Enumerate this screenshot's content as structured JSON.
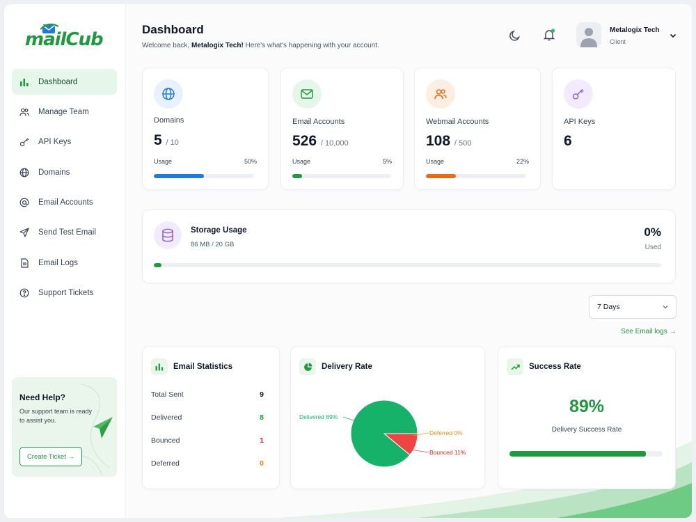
{
  "brand": {
    "logo_text": "mailCub"
  },
  "sidebar": {
    "items": [
      {
        "label": "Dashboard",
        "icon": "bar-chart-icon",
        "active": true
      },
      {
        "label": "Manage Team",
        "icon": "users-icon"
      },
      {
        "label": "API Keys",
        "icon": "key-icon"
      },
      {
        "label": "Domains",
        "icon": "globe-icon"
      },
      {
        "label": "Email Accounts",
        "icon": "at-icon"
      },
      {
        "label": "Send Test Email",
        "icon": "send-icon"
      },
      {
        "label": "Email Logs",
        "icon": "file-icon"
      },
      {
        "label": "Support Tickets",
        "icon": "help-circle-icon"
      }
    ],
    "help": {
      "title": "Need Help?",
      "text": "Our support team is ready to assist you.",
      "button": "Create Ticket →"
    }
  },
  "header": {
    "title": "Dashboard",
    "welcome_prefix": "Welcome back, ",
    "welcome_name": "Metalogix Tech!",
    "welcome_suffix": " Here's what's happening with your account.",
    "user_name": "Metalogix Tech",
    "user_role": "Client"
  },
  "stats": {
    "domains": {
      "label": "Domains",
      "value": "5",
      "max": "/ 10",
      "usage_label": "Usage",
      "pct": "50%",
      "fill": 0.5
    },
    "email_accounts": {
      "label": "Email Accounts",
      "value": "526",
      "max": "/ 10,000",
      "usage_label": "Usage",
      "pct": "5%",
      "fill": 0.1
    },
    "webmail_accounts": {
      "label": "Webmail Accounts",
      "value": "108",
      "max": "/ 500",
      "usage_label": "Usage",
      "pct": "22%",
      "fill": 0.3
    },
    "api_keys": {
      "label": "API Keys",
      "value": "6"
    }
  },
  "storage": {
    "title": "Storage Usage",
    "detail": "86 MB / 20 GB",
    "pct": "0%",
    "used_label": "Used",
    "fill": 0.015
  },
  "filters": {
    "range": "7 Days",
    "see_logs": "See Email logs →"
  },
  "email_statistics": {
    "title": "Email Statistics",
    "rows": [
      {
        "label": "Total Sent",
        "value": "9",
        "color": "#111827"
      },
      {
        "label": "Delivered",
        "value": "8",
        "color": "#1e9a3e"
      },
      {
        "label": "Bounced",
        "value": "1",
        "color": "#dc2626"
      },
      {
        "label": "Deferred",
        "value": "0",
        "color": "#ea8a0c"
      }
    ]
  },
  "delivery_rate": {
    "title": "Delivery Rate",
    "labels": {
      "delivered": "Delivered 89%",
      "deferred": "Deferred 0%",
      "bounced": "Bounced 11%"
    }
  },
  "success_rate": {
    "title": "Success Rate",
    "value": "89%",
    "caption": "Delivery Success Rate",
    "fill": 0.89
  },
  "chart_data": {
    "type": "pie",
    "title": "Delivery Rate",
    "categories": [
      "Delivered",
      "Deferred",
      "Bounced"
    ],
    "values": [
      89,
      0,
      11
    ],
    "colors": [
      "#17b26a",
      "#f59e0b",
      "#ef4444"
    ]
  },
  "colors": {
    "accent": "#1e9a3e",
    "blue": "#1f7ae0",
    "orange": "#ee6a12"
  }
}
